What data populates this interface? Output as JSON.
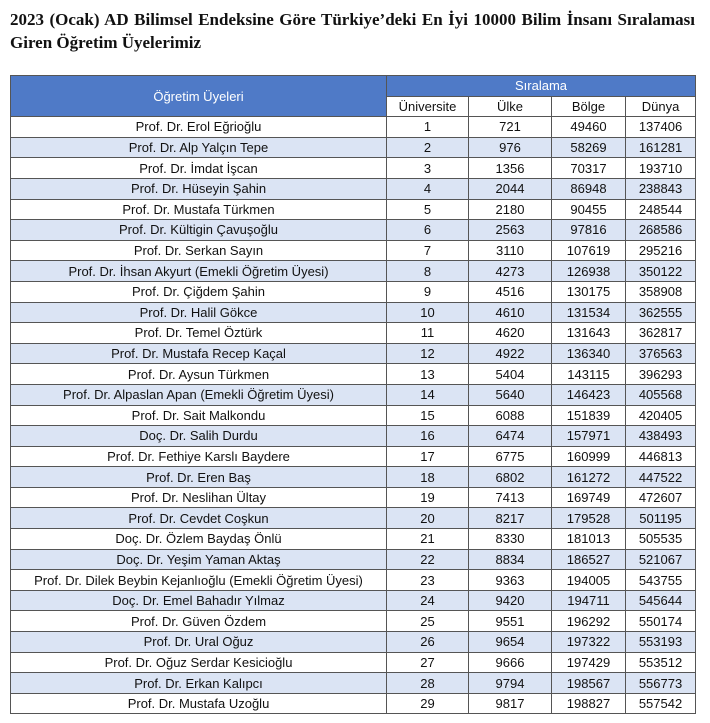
{
  "header": {
    "title": "2023 (Ocak) AD Bilimsel Endeksine Göre Türkiye’deki En İyi 10000 Bilim İnsanı Sıralaması Giren Öğretim Üyelerimiz"
  },
  "table": {
    "name_header": "Öğretim Üyeleri",
    "group_header": "Sıralama",
    "columns": [
      "Üniversite",
      "Ülke",
      "Bölge",
      "Dünya"
    ],
    "rows": [
      [
        "Prof. Dr. Erol Eğrioğlu",
        1,
        721,
        49460,
        137406
      ],
      [
        "Prof. Dr. Alp Yalçın Tepe",
        2,
        976,
        58269,
        161281
      ],
      [
        "Prof. Dr. İmdat İşcan",
        3,
        1356,
        70317,
        193710
      ],
      [
        "Prof. Dr. Hüseyin Şahin",
        4,
        2044,
        86948,
        238843
      ],
      [
        "Prof. Dr. Mustafa Türkmen",
        5,
        2180,
        90455,
        248544
      ],
      [
        "Prof. Dr. Kültigin Çavuşoğlu",
        6,
        2563,
        97816,
        268586
      ],
      [
        "Prof. Dr. Serkan Sayın",
        7,
        3110,
        107619,
        295216
      ],
      [
        "Prof. Dr. İhsan Akyurt (Emekli Öğretim Üyesi)",
        8,
        4273,
        126938,
        350122
      ],
      [
        "Prof. Dr. Çiğdem Şahin",
        9,
        4516,
        130175,
        358908
      ],
      [
        "Prof. Dr. Halil Gökce",
        10,
        4610,
        131534,
        362555
      ],
      [
        "Prof. Dr. Temel Öztürk",
        11,
        4620,
        131643,
        362817
      ],
      [
        "Prof. Dr. Mustafa Recep Kaçal",
        12,
        4922,
        136340,
        376563
      ],
      [
        "Prof. Dr. Aysun Türkmen",
        13,
        5404,
        143115,
        396293
      ],
      [
        "Prof. Dr. Alpaslan Apan (Emekli Öğretim Üyesi)",
        14,
        5640,
        146423,
        405568
      ],
      [
        "Prof. Dr. Sait Malkondu",
        15,
        6088,
        151839,
        420405
      ],
      [
        "Doç. Dr. Salih Durdu",
        16,
        6474,
        157971,
        438493
      ],
      [
        "Prof. Dr. Fethiye Karslı Baydere",
        17,
        6775,
        160999,
        446813
      ],
      [
        "Prof. Dr. Eren Baş",
        18,
        6802,
        161272,
        447522
      ],
      [
        "Prof. Dr. Neslihan Ültay",
        19,
        7413,
        169749,
        472607
      ],
      [
        "Prof. Dr. Cevdet Coşkun",
        20,
        8217,
        179528,
        501195
      ],
      [
        "Doç. Dr. Özlem Baydaş Önlü",
        21,
        8330,
        181013,
        505535
      ],
      [
        "Doç. Dr. Yeşim Yaman Aktaş",
        22,
        8834,
        186527,
        521067
      ],
      [
        "Prof. Dr. Dilek Beybin Kejanlıoğlu (Emekli Öğretim Üyesi)",
        23,
        9363,
        194005,
        543755
      ],
      [
        "Doç. Dr. Emel Bahadır Yılmaz",
        24,
        9420,
        194711,
        545644
      ],
      [
        "Prof. Dr. Güven Özdem",
        25,
        9551,
        196292,
        550174
      ],
      [
        "Prof. Dr. Ural Oğuz",
        26,
        9654,
        197322,
        553193
      ],
      [
        "Prof. Dr. Oğuz Serdar Kesicioğlu",
        27,
        9666,
        197429,
        553512
      ],
      [
        "Prof. Dr. Erkan Kalıpcı",
        28,
        9794,
        198567,
        556773
      ],
      [
        "Prof. Dr. Mustafa Uzoğlu",
        29,
        9817,
        198827,
        557542
      ]
    ]
  }
}
